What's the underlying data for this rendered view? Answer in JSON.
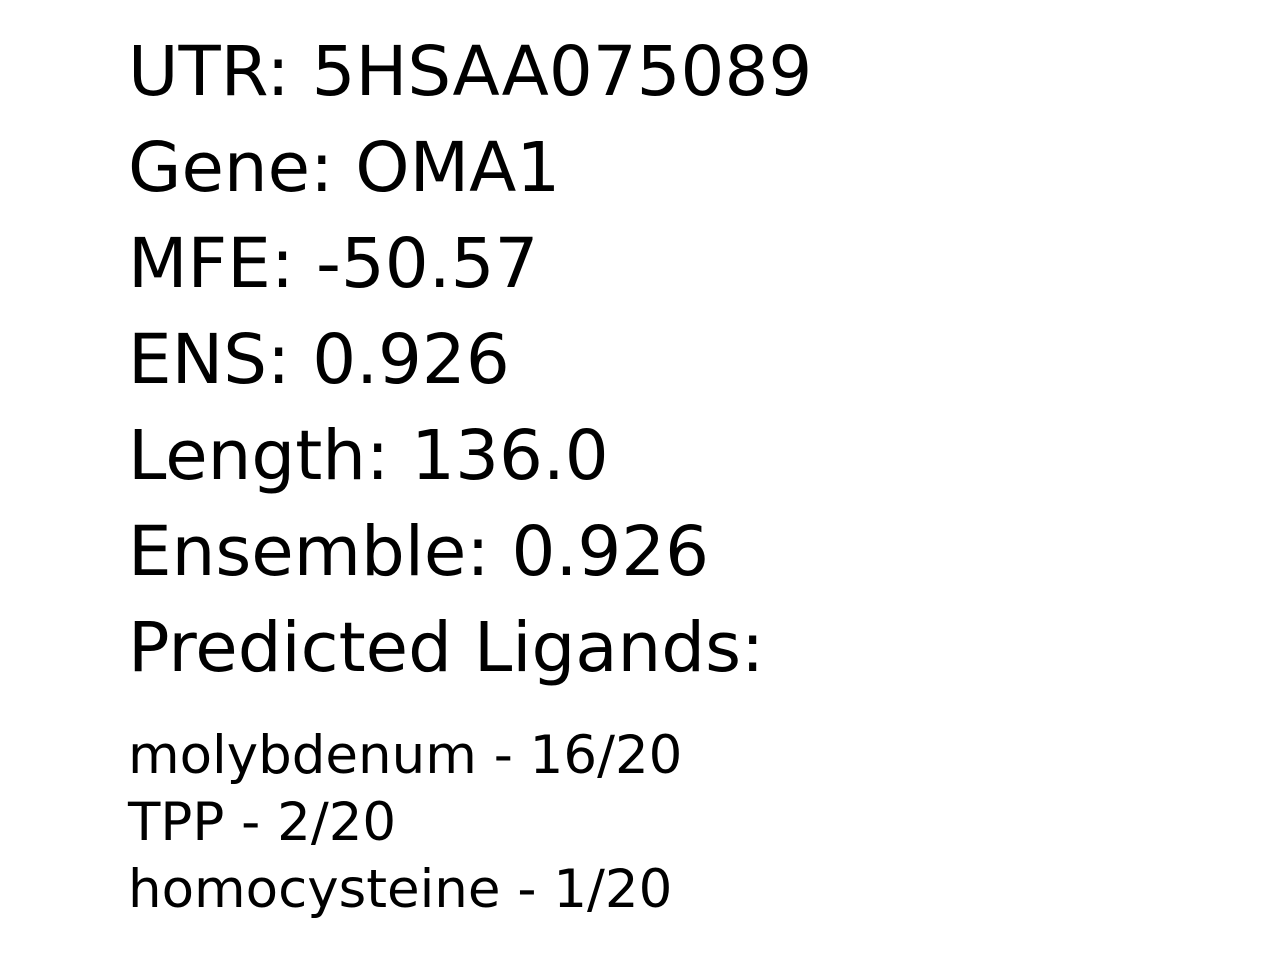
{
  "fields": {
    "utr": "UTR: 5HSAA075089",
    "gene": "Gene: OMA1",
    "mfe": "MFE: -50.57",
    "ens": "ENS: 0.926",
    "length": "Length: 136.0",
    "ensemble": "Ensemble: 0.926",
    "ligands_heading": "Predicted Ligands:"
  },
  "ligands": [
    "molybdenum - 16/20",
    "TPP - 2/20",
    "homocysteine - 1/20"
  ]
}
